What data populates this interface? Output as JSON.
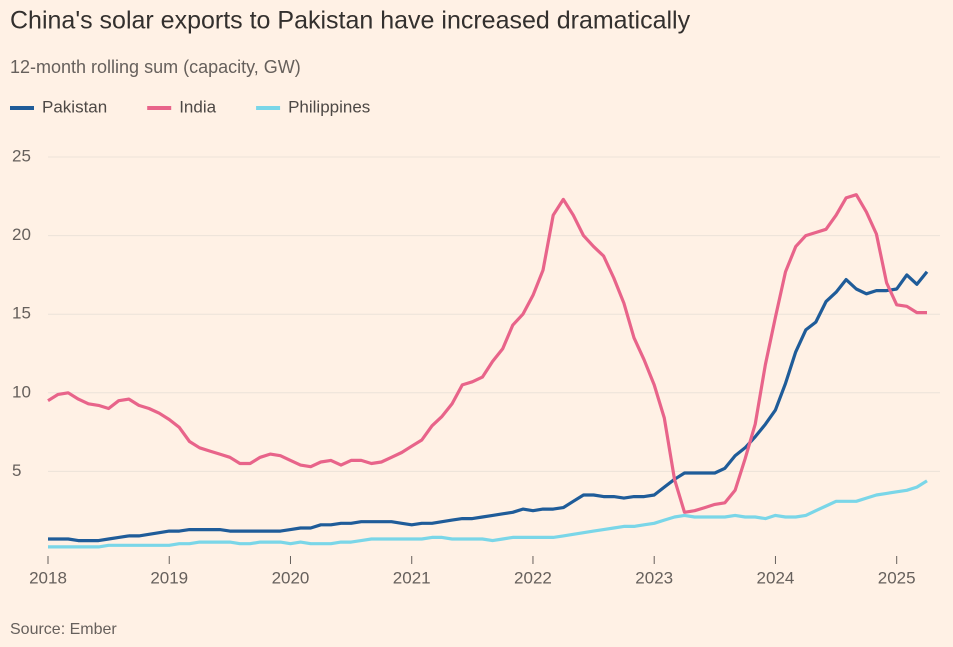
{
  "chart_data": {
    "type": "line",
    "title": "China's solar exports to Pakistan have increased dramatically",
    "subtitle": "12-month rolling sum (capacity, GW)",
    "source": "Source: Ember",
    "x": [
      2018,
      2018.083,
      2018.167,
      2018.25,
      2018.333,
      2018.417,
      2018.5,
      2018.583,
      2018.667,
      2018.75,
      2018.833,
      2018.917,
      2019,
      2019.083,
      2019.167,
      2019.25,
      2019.333,
      2019.417,
      2019.5,
      2019.583,
      2019.667,
      2019.75,
      2019.833,
      2019.917,
      2020,
      2020.083,
      2020.167,
      2020.25,
      2020.333,
      2020.417,
      2020.5,
      2020.583,
      2020.667,
      2020.75,
      2020.833,
      2020.917,
      2021,
      2021.083,
      2021.167,
      2021.25,
      2021.333,
      2021.417,
      2021.5,
      2021.583,
      2021.667,
      2021.75,
      2021.833,
      2021.917,
      2022,
      2022.083,
      2022.167,
      2022.25,
      2022.333,
      2022.417,
      2022.5,
      2022.583,
      2022.667,
      2022.75,
      2022.833,
      2022.917,
      2023,
      2023.083,
      2023.167,
      2023.25,
      2023.333,
      2023.417,
      2023.5,
      2023.583,
      2023.667,
      2023.75,
      2023.833,
      2023.917,
      2024,
      2024.083,
      2024.167,
      2024.25,
      2024.333,
      2024.417,
      2024.5,
      2024.583,
      2024.667,
      2024.75,
      2024.833,
      2024.917,
      2025,
      2025.083,
      2025.167,
      2025.25
    ],
    "series": [
      {
        "name": "Pakistan",
        "color": "#1f5c99",
        "values": [
          0.7,
          0.7,
          0.7,
          0.6,
          0.6,
          0.6,
          0.7,
          0.8,
          0.9,
          0.9,
          1.0,
          1.1,
          1.2,
          1.2,
          1.3,
          1.3,
          1.3,
          1.3,
          1.2,
          1.2,
          1.2,
          1.2,
          1.2,
          1.2,
          1.3,
          1.4,
          1.4,
          1.6,
          1.6,
          1.7,
          1.7,
          1.8,
          1.8,
          1.8,
          1.8,
          1.7,
          1.6,
          1.7,
          1.7,
          1.8,
          1.9,
          2.0,
          2.0,
          2.1,
          2.2,
          2.3,
          2.4,
          2.6,
          2.5,
          2.6,
          2.6,
          2.7,
          3.1,
          3.5,
          3.5,
          3.4,
          3.4,
          3.3,
          3.4,
          3.4,
          3.5,
          4.0,
          4.5,
          4.9,
          4.9,
          4.9,
          4.9,
          5.2,
          6.0,
          6.5,
          7.2,
          8.0,
          8.9,
          10.6,
          12.6,
          14.0,
          14.5,
          15.8,
          16.4,
          17.2,
          16.6,
          16.3,
          16.5,
          16.5,
          16.6,
          17.5,
          16.9,
          17.7
        ]
      },
      {
        "name": "India",
        "color": "#e8648a",
        "values": [
          9.5,
          9.9,
          10.0,
          9.6,
          9.3,
          9.2,
          9.0,
          9.5,
          9.6,
          9.2,
          9.0,
          8.7,
          8.3,
          7.8,
          6.9,
          6.5,
          6.3,
          6.1,
          5.9,
          5.5,
          5.5,
          5.9,
          6.1,
          6.0,
          5.7,
          5.4,
          5.3,
          5.6,
          5.7,
          5.4,
          5.7,
          5.7,
          5.5,
          5.6,
          5.9,
          6.2,
          6.6,
          7.0,
          7.9,
          8.5,
          9.3,
          10.5,
          10.7,
          11.0,
          12.0,
          12.8,
          14.3,
          15.0,
          16.2,
          17.8,
          21.3,
          22.3,
          21.3,
          20.0,
          19.3,
          18.7,
          17.3,
          15.7,
          13.5,
          12.1,
          10.5,
          8.4,
          4.5,
          2.4,
          2.5,
          2.7,
          2.9,
          3.0,
          3.8,
          5.8,
          8.0,
          11.8,
          14.8,
          17.7,
          19.3,
          20.0,
          20.2,
          20.4,
          21.3,
          22.4,
          22.6,
          21.5,
          20.1,
          17.0,
          15.6,
          15.5,
          15.1,
          15.1
        ]
      },
      {
        "name": "Philippines",
        "color": "#7ad6e8",
        "values": [
          0.2,
          0.2,
          0.2,
          0.2,
          0.2,
          0.2,
          0.3,
          0.3,
          0.3,
          0.3,
          0.3,
          0.3,
          0.3,
          0.4,
          0.4,
          0.5,
          0.5,
          0.5,
          0.5,
          0.4,
          0.4,
          0.5,
          0.5,
          0.5,
          0.4,
          0.5,
          0.4,
          0.4,
          0.4,
          0.5,
          0.5,
          0.6,
          0.7,
          0.7,
          0.7,
          0.7,
          0.7,
          0.7,
          0.8,
          0.8,
          0.7,
          0.7,
          0.7,
          0.7,
          0.6,
          0.7,
          0.8,
          0.8,
          0.8,
          0.8,
          0.8,
          0.9,
          1.0,
          1.1,
          1.2,
          1.3,
          1.4,
          1.5,
          1.5,
          1.6,
          1.7,
          1.9,
          2.1,
          2.2,
          2.1,
          2.1,
          2.1,
          2.1,
          2.2,
          2.1,
          2.1,
          2.0,
          2.2,
          2.1,
          2.1,
          2.2,
          2.5,
          2.8,
          3.1,
          3.1,
          3.1,
          3.3,
          3.5,
          3.6,
          3.7,
          3.8,
          4.0,
          4.4
        ]
      }
    ],
    "xlim": [
      2018,
      2025.25
    ],
    "xticks": [
      2018,
      2019,
      2020,
      2021,
      2022,
      2023,
      2024,
      2025
    ],
    "ylim": [
      0,
      25
    ],
    "yticks": [
      5,
      10,
      15,
      20,
      25
    ],
    "grid": true,
    "legend": "top-left"
  }
}
